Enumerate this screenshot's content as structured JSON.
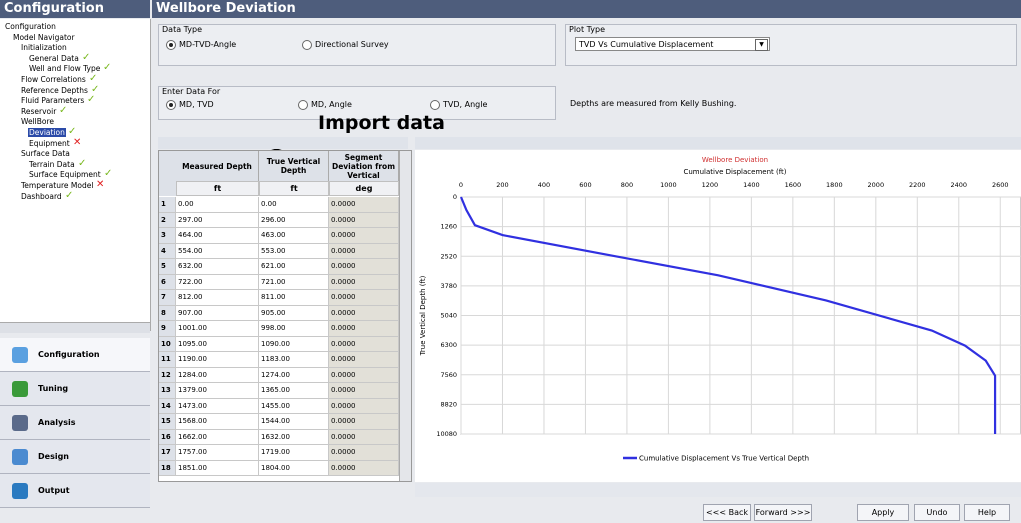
{
  "left_panel": {
    "title": "Configuration",
    "tree": [
      {
        "label": "Configuration",
        "level": 0
      },
      {
        "label": "Model Navigator",
        "level": 1
      },
      {
        "label": "Initialization",
        "level": 2
      },
      {
        "label": "General Data",
        "level": 3,
        "mark": "check"
      },
      {
        "label": "Well and Flow Type",
        "level": 3,
        "mark": "check"
      },
      {
        "label": "Flow Correlations",
        "level": 2,
        "mark": "check"
      },
      {
        "label": "Reference Depths",
        "level": 2,
        "mark": "check"
      },
      {
        "label": "Fluid Parameters",
        "level": 2,
        "mark": "check"
      },
      {
        "label": "Reservoir",
        "level": 2,
        "mark": "check"
      },
      {
        "label": "WellBore",
        "level": 2
      },
      {
        "label": "Deviation",
        "level": 3,
        "mark": "check",
        "selected": true
      },
      {
        "label": "Equipment",
        "level": 3,
        "mark": "cross"
      },
      {
        "label": "Surface Data",
        "level": 2
      },
      {
        "label": "Terrain Data",
        "level": 3,
        "mark": "check"
      },
      {
        "label": "Surface Equipment",
        "level": 3,
        "mark": "check"
      },
      {
        "label": "Temperature Model",
        "level": 2,
        "mark": "cross"
      },
      {
        "label": "Dashboard",
        "level": 2,
        "mark": "check"
      }
    ],
    "nav": [
      {
        "label": "Configuration",
        "color": "#5aa0e0",
        "selected": true
      },
      {
        "label": "Tuning",
        "color": "#3a9a3a"
      },
      {
        "label": "Analysis",
        "color": "#5a6a8a"
      },
      {
        "label": "Design",
        "color": "#4a8ad0"
      },
      {
        "label": "Output",
        "color": "#2a7ac0"
      }
    ]
  },
  "main": {
    "title": "Wellbore Deviation",
    "data_type": {
      "label": "Data Type",
      "options": [
        "MD-TVD-Angle",
        "Directional Survey"
      ],
      "selected": 0
    },
    "plot_type": {
      "label": "Plot Type",
      "value": "TVD Vs Cumulative Displacement"
    },
    "enter_data": {
      "label": "Enter Data For",
      "options": [
        "MD, TVD",
        "MD, Angle",
        "TVD, Angle"
      ],
      "selected": 0
    },
    "note": "Depths are measured from Kelly Bushing.",
    "annotation": "Import data",
    "buttons": [
      "<<< Back",
      "Forward >>>",
      "Apply",
      "Undo",
      "Help"
    ]
  },
  "table": {
    "columns": [
      "Measured Depth",
      "True Vertical Depth",
      "Segment Deviation from Vertical"
    ],
    "units": [
      "ft",
      "ft",
      "deg"
    ],
    "rows": [
      [
        "1",
        "0.00",
        "0.00",
        "0.0000"
      ],
      [
        "2",
        "297.00",
        "296.00",
        "0.0000"
      ],
      [
        "3",
        "464.00",
        "463.00",
        "0.0000"
      ],
      [
        "4",
        "554.00",
        "553.00",
        "0.0000"
      ],
      [
        "5",
        "632.00",
        "621.00",
        "0.0000"
      ],
      [
        "6",
        "722.00",
        "721.00",
        "0.0000"
      ],
      [
        "7",
        "812.00",
        "811.00",
        "0.0000"
      ],
      [
        "8",
        "907.00",
        "905.00",
        "0.0000"
      ],
      [
        "9",
        "1001.00",
        "998.00",
        "0.0000"
      ],
      [
        "10",
        "1095.00",
        "1090.00",
        "0.0000"
      ],
      [
        "11",
        "1190.00",
        "1183.00",
        "0.0000"
      ],
      [
        "12",
        "1284.00",
        "1274.00",
        "0.0000"
      ],
      [
        "13",
        "1379.00",
        "1365.00",
        "0.0000"
      ],
      [
        "14",
        "1473.00",
        "1455.00",
        "0.0000"
      ],
      [
        "15",
        "1568.00",
        "1544.00",
        "0.0000"
      ],
      [
        "16",
        "1662.00",
        "1632.00",
        "0.0000"
      ],
      [
        "17",
        "1757.00",
        "1719.00",
        "0.0000"
      ],
      [
        "18",
        "1851.00",
        "1804.00",
        "0.0000"
      ]
    ]
  },
  "chart_data": {
    "type": "line",
    "title": "Wellbore Deviation",
    "x_label": "Cumulative Displacement (ft)",
    "y_label": "True Vertical Depth (ft)",
    "x": [
      0,
      26,
      67,
      200,
      720,
      1240,
      1760,
      2270,
      2430,
      2530,
      2575,
      2575
    ],
    "series": [
      {
        "name": "Cumulative Displacement Vs True Vertical Depth",
        "color": "#3030e0",
        "values": [
          0,
          555,
          1200,
          1620,
          2480,
          3330,
          4400,
          5680,
          6320,
          6960,
          7600,
          10080
        ]
      }
    ],
    "xlim": [
      0,
      2700
    ],
    "xticks": [
      0,
      200,
      400,
      600,
      800,
      1000,
      1200,
      1400,
      1600,
      1800,
      2000,
      2200,
      2400,
      2600
    ],
    "ylim": [
      0,
      10080
    ],
    "yticks": [
      0,
      1260,
      2520,
      3780,
      5040,
      6300,
      7560,
      8820,
      10080
    ],
    "y_inverted": true,
    "x_axis_top": true,
    "grid": true,
    "legend": "bottom"
  }
}
